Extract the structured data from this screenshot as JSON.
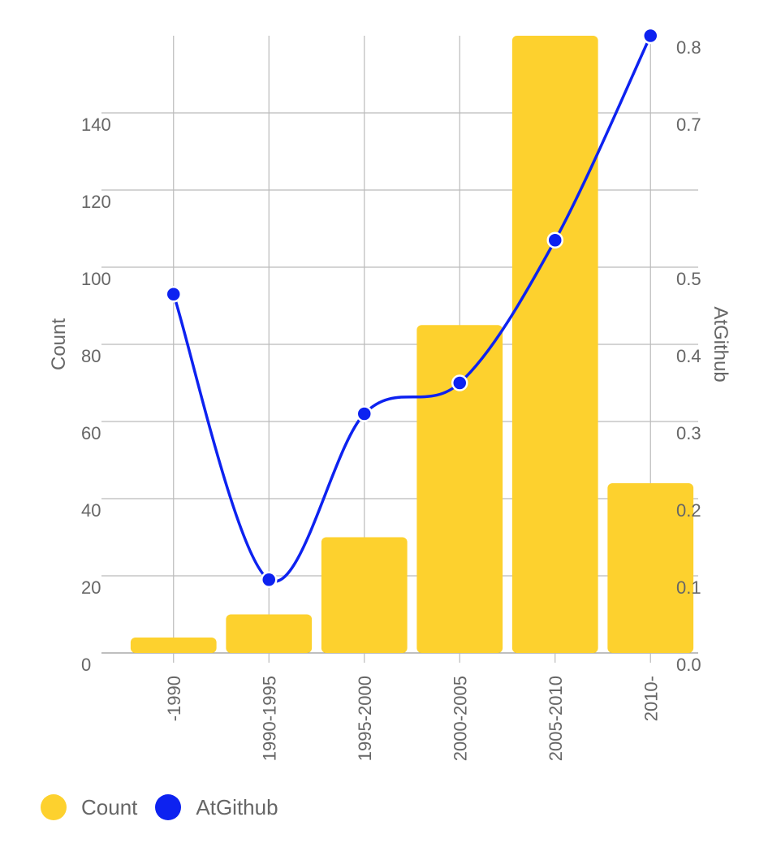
{
  "chart_data": {
    "type": "bar",
    "categories": [
      "-1990",
      "1990-1995",
      "1995-2000",
      "2000-2005",
      "2005-2010",
      "2010-"
    ],
    "series": [
      {
        "name": "Count",
        "type": "bar",
        "axis": "left",
        "color": "#FDD12E",
        "values": [
          4,
          10,
          30,
          85,
          160,
          44
        ]
      },
      {
        "name": "AtGithub",
        "type": "line",
        "axis": "right",
        "color": "#0D22F0",
        "values": [
          0.465,
          0.095,
          0.31,
          0.35,
          0.535,
          0.8
        ]
      }
    ],
    "ylabel": "Count",
    "y2label": "AtGithub",
    "ylim": [
      0,
      160
    ],
    "y2lim": [
      0,
      0.8
    ],
    "yticks": [
      "0",
      "20",
      "40",
      "60",
      "80",
      "100",
      "120",
      "140"
    ],
    "y2ticks": [
      "0.0",
      "0.1",
      "0.2",
      "0.3",
      "0.4",
      "0.5",
      "0.6",
      "0.7",
      "0.8"
    ],
    "grid": true,
    "legend_position": "bottom-left"
  }
}
